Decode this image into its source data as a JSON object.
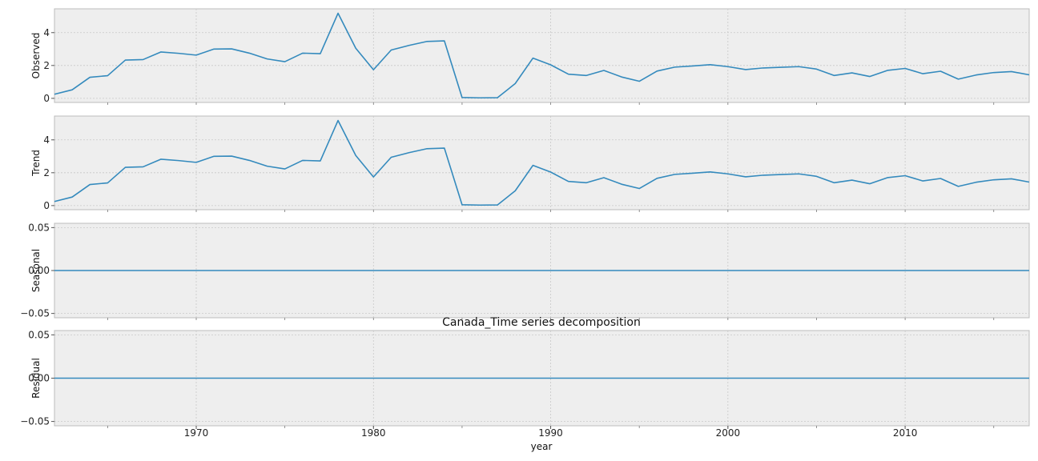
{
  "chart_data": {
    "type": "line",
    "title": "Canada_Time series decomposition",
    "xlabel": "year",
    "x_ticks": [
      1970,
      1980,
      1990,
      2000,
      2010
    ],
    "xlim": [
      1962,
      2017
    ],
    "x": [
      1962,
      1963,
      1964,
      1965,
      1966,
      1967,
      1968,
      1969,
      1970,
      1971,
      1972,
      1973,
      1974,
      1975,
      1976,
      1977,
      1978,
      1979,
      1980,
      1981,
      1982,
      1983,
      1984,
      1985,
      1986,
      1987,
      1988,
      1989,
      1990,
      1991,
      1992,
      1993,
      1994,
      1995,
      1996,
      1997,
      1998,
      1999,
      2000,
      2001,
      2002,
      2003,
      2004,
      2005,
      2006,
      2007,
      2008,
      2009,
      2010,
      2011,
      2012,
      2013,
      2014,
      2015,
      2016,
      2017
    ],
    "line_color": "#348ABD",
    "grid": true,
    "panels": [
      {
        "ylabel": "Observed",
        "ylim": [
          -0.25,
          5.45
        ],
        "y_ticks": [
          0,
          2,
          4
        ],
        "y_tick_labels": [
          "0",
          "2",
          "4"
        ],
        "values": [
          0.25,
          0.52,
          1.28,
          1.38,
          2.33,
          2.36,
          2.82,
          2.74,
          2.63,
          3.0,
          3.01,
          2.75,
          2.4,
          2.23,
          2.75,
          2.72,
          5.18,
          3.05,
          1.74,
          2.94,
          3.22,
          3.46,
          3.5,
          0.05,
          0.03,
          0.04,
          0.9,
          2.45,
          2.04,
          1.47,
          1.39,
          1.7,
          1.3,
          1.04,
          1.66,
          1.9,
          1.97,
          2.05,
          1.93,
          1.75,
          1.85,
          1.89,
          1.93,
          1.78,
          1.39,
          1.55,
          1.33,
          1.7,
          1.82,
          1.5,
          1.65,
          1.17,
          1.42,
          1.57,
          1.63,
          1.43
        ]
      },
      {
        "ylabel": "Trend",
        "ylim": [
          -0.25,
          5.45
        ],
        "y_ticks": [
          0,
          2,
          4
        ],
        "y_tick_labels": [
          "0",
          "2",
          "4"
        ],
        "values": [
          0.25,
          0.52,
          1.28,
          1.38,
          2.33,
          2.36,
          2.82,
          2.74,
          2.63,
          3.0,
          3.01,
          2.75,
          2.4,
          2.23,
          2.75,
          2.72,
          5.18,
          3.05,
          1.74,
          2.94,
          3.22,
          3.46,
          3.5,
          0.05,
          0.03,
          0.04,
          0.9,
          2.45,
          2.04,
          1.47,
          1.39,
          1.7,
          1.3,
          1.04,
          1.66,
          1.9,
          1.97,
          2.05,
          1.93,
          1.75,
          1.85,
          1.89,
          1.93,
          1.78,
          1.39,
          1.55,
          1.33,
          1.7,
          1.82,
          1.5,
          1.65,
          1.17,
          1.42,
          1.57,
          1.63,
          1.43
        ]
      },
      {
        "ylabel": "Seasonal",
        "ylim": [
          -0.055,
          0.055
        ],
        "y_ticks": [
          0.05,
          0,
          -0.05
        ],
        "y_tick_labels": [
          "0.05",
          "0.00",
          "−0.05"
        ],
        "constant": 0
      },
      {
        "ylabel": "Residual",
        "ylim": [
          -0.055,
          0.055
        ],
        "y_ticks": [
          0.05,
          0,
          -0.05
        ],
        "y_tick_labels": [
          "0.05",
          "0.00",
          "−0.05"
        ],
        "constant": 0
      }
    ]
  }
}
